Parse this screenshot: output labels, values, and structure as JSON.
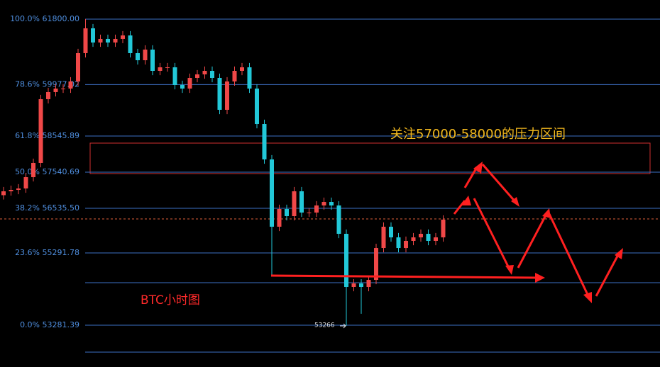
{
  "chart_data": {
    "type": "candlestick",
    "ylim": [
      52118,
      62332
    ],
    "yticks": [
      {
        "value": 61800.0,
        "label": "100.0% 61800.00"
      },
      {
        "value": 59977.02,
        "label": "78.6% 59977.02"
      },
      {
        "value": 58545.89,
        "label": "61.8% 58545.89"
      },
      {
        "value": 57540.69,
        "label": "50.0% 57540.69"
      },
      {
        "value": 56535.5,
        "label": "38.2% 56535.50"
      },
      {
        "value": 55291.78,
        "label": "23.6% 55291.78"
      },
      {
        "value": 53281.39,
        "label": "0.0% 53281.39"
      }
    ],
    "up_color": "#f04848",
    "down_color": "#22c8d8",
    "ohlc": [
      [
        56900,
        57128,
        56780,
        57008
      ],
      [
        57008,
        57167,
        56888,
        57047
      ],
      [
        57047,
        57207,
        56927,
        57087
      ],
      [
        57087,
        57522,
        56967,
        57402
      ],
      [
        57402,
        57917,
        57282,
        57797
      ],
      [
        57797,
        59692,
        57677,
        59572
      ],
      [
        59572,
        59889,
        59452,
        59769
      ],
      [
        59769,
        59987,
        59649,
        59867
      ],
      [
        59867,
        59987,
        59747,
        59867
      ],
      [
        59867,
        60185,
        59747,
        60065
      ],
      [
        60065,
        60973,
        59945,
        60853
      ],
      [
        60853,
        61800,
        60733,
        61544
      ],
      [
        61544,
        61664,
        61029,
        61149
      ],
      [
        61149,
        61368,
        61029,
        61248
      ],
      [
        61248,
        61368,
        61029,
        61149
      ],
      [
        61149,
        61368,
        61029,
        61248
      ],
      [
        61248,
        61466,
        61128,
        61346
      ],
      [
        61346,
        61466,
        60733,
        60853
      ],
      [
        60853,
        60973,
        60536,
        60656
      ],
      [
        60656,
        61072,
        60536,
        60952
      ],
      [
        60952,
        61072,
        60240,
        60360
      ],
      [
        60360,
        60579,
        60240,
        60459
      ],
      [
        60459,
        60579,
        60339,
        60459
      ],
      [
        60459,
        60579,
        59846,
        59966
      ],
      [
        59966,
        60086,
        59747,
        59867
      ],
      [
        59867,
        60283,
        59747,
        60163
      ],
      [
        60163,
        60382,
        60043,
        60262
      ],
      [
        60262,
        60480,
        60142,
        60360
      ],
      [
        60360,
        60480,
        60043,
        60163
      ],
      [
        60163,
        60283,
        59156,
        59276
      ],
      [
        59276,
        60185,
        59156,
        60065
      ],
      [
        60065,
        60480,
        59945,
        60360
      ],
      [
        60360,
        60579,
        60240,
        60459
      ],
      [
        60459,
        60579,
        59747,
        59867
      ],
      [
        59867,
        59987,
        58761,
        58881
      ],
      [
        58881,
        59001,
        57775,
        57895
      ],
      [
        57895,
        58015,
        54640,
        56022
      ],
      [
        56022,
        56635,
        55902,
        56515
      ],
      [
        56515,
        56635,
        56198,
        56318
      ],
      [
        56318,
        57128,
        56198,
        57008
      ],
      [
        57008,
        57128,
        56296,
        56416
      ],
      [
        56416,
        56536,
        56296,
        56416
      ],
      [
        56416,
        56734,
        56296,
        56614
      ],
      [
        56614,
        56832,
        56492,
        56712
      ],
      [
        56712,
        56832,
        56494,
        56614
      ],
      [
        56614,
        56734,
        55705,
        55825
      ],
      [
        55825,
        55945,
        53266,
        54346
      ],
      [
        54346,
        54564,
        54226,
        54444
      ],
      [
        54444,
        54564,
        53600,
        54346
      ],
      [
        54346,
        54663,
        54226,
        54543
      ],
      [
        54543,
        55550,
        54423,
        55430
      ],
      [
        55430,
        56142,
        55310,
        56022
      ],
      [
        56022,
        56142,
        55606,
        55726
      ],
      [
        55726,
        55846,
        55310,
        55430
      ],
      [
        55430,
        55748,
        55310,
        55628
      ],
      [
        55628,
        55846,
        55508,
        55726
      ],
      [
        55726,
        55945,
        55606,
        55825
      ],
      [
        55825,
        55945,
        55508,
        55628
      ],
      [
        55628,
        55846,
        55508,
        55726
      ],
      [
        55726,
        56339,
        55606,
        56219
      ]
    ],
    "low_label": 53266,
    "zone_note": "关注57000-58000的压力区间",
    "chart_note": "BTC小时图"
  }
}
